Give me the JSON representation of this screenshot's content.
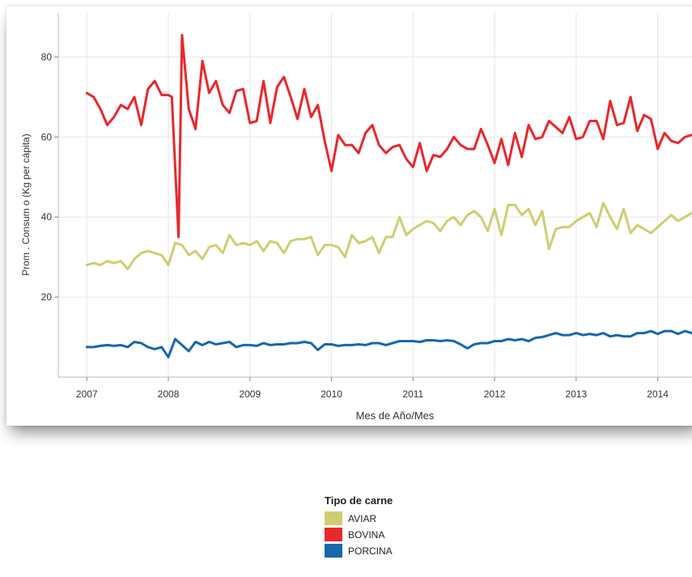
{
  "chart_data": {
    "type": "line",
    "title": "",
    "xlabel": "Mes de Año/Mes",
    "ylabel": "Prom . Consum o (Kg per cápita)",
    "x_tick_labels": [
      "2007",
      "2008",
      "2009",
      "2010",
      "2011",
      "2012",
      "2013",
      "2014"
    ],
    "y_tick_labels": [
      "20",
      "40",
      "60",
      "80"
    ],
    "y_ticks": [
      20,
      40,
      60,
      80
    ],
    "xlim": [
      2006.65,
      2014.47
    ],
    "ylim": [
      0,
      91
    ],
    "grid": true,
    "legend_position": "bottom-center",
    "legend_title": "Tipo de carne",
    "series": [
      {
        "name": "AVIAR",
        "color": "#cfcd72",
        "x": [
          2007.0,
          2007.083,
          2007.167,
          2007.25,
          2007.333,
          2007.417,
          2007.5,
          2007.583,
          2007.667,
          2007.75,
          2007.833,
          2007.917,
          2008.0,
          2008.083,
          2008.167,
          2008.25,
          2008.333,
          2008.417,
          2008.5,
          2008.583,
          2008.667,
          2008.75,
          2008.833,
          2008.917,
          2009.0,
          2009.083,
          2009.167,
          2009.25,
          2009.333,
          2009.417,
          2009.5,
          2009.583,
          2009.667,
          2009.75,
          2009.833,
          2009.917,
          2010.0,
          2010.083,
          2010.167,
          2010.25,
          2010.333,
          2010.417,
          2010.5,
          2010.583,
          2010.667,
          2010.75,
          2010.833,
          2010.917,
          2011.0,
          2011.083,
          2011.167,
          2011.25,
          2011.333,
          2011.417,
          2011.5,
          2011.583,
          2011.667,
          2011.75,
          2011.833,
          2011.917,
          2012.0,
          2012.083,
          2012.167,
          2012.25,
          2012.333,
          2012.417,
          2012.5,
          2012.583,
          2012.667,
          2012.75,
          2012.833,
          2012.917,
          2013.0,
          2013.083,
          2013.167,
          2013.25,
          2013.333,
          2013.417,
          2013.5,
          2013.583,
          2013.667,
          2013.75,
          2013.833,
          2013.917,
          2014.0,
          2014.083,
          2014.167,
          2014.25,
          2014.333,
          2014.417
        ],
        "values": [
          28,
          28.5,
          28,
          29,
          28.5,
          29,
          27,
          29.5,
          31,
          31.5,
          31,
          30.5,
          28,
          33.5,
          33,
          30.5,
          31.5,
          29.5,
          32.5,
          33,
          31,
          35.5,
          33,
          33.5,
          33,
          34,
          31.5,
          34,
          33.5,
          31,
          34,
          34.5,
          34.5,
          35,
          30.5,
          33,
          33,
          32.5,
          30,
          35.5,
          33.5,
          34,
          35,
          31,
          35,
          35,
          40,
          35.5,
          37,
          38,
          39,
          38.5,
          36.5,
          39,
          40,
          38,
          40.5,
          41.5,
          40,
          36.5,
          42,
          35.5,
          43,
          43,
          40.5,
          42,
          38,
          41.5,
          32,
          37,
          37.5,
          37.5,
          39,
          40,
          41,
          37.5,
          43.5,
          40,
          37,
          42,
          36,
          38,
          37,
          36,
          37.5,
          39,
          40.5,
          39,
          40,
          41
        ]
      },
      {
        "name": "BOVINA",
        "color": "#e8282c",
        "x": [
          2007.0,
          2007.083,
          2007.167,
          2007.25,
          2007.333,
          2007.417,
          2007.5,
          2007.583,
          2007.667,
          2007.75,
          2007.833,
          2007.917,
          2008.0,
          2008.042,
          2008.125,
          2008.167,
          2008.25,
          2008.333,
          2008.417,
          2008.5,
          2008.583,
          2008.667,
          2008.75,
          2008.833,
          2008.917,
          2009.0,
          2009.083,
          2009.167,
          2009.25,
          2009.333,
          2009.417,
          2009.5,
          2009.583,
          2009.667,
          2009.75,
          2009.833,
          2009.917,
          2010.0,
          2010.083,
          2010.167,
          2010.25,
          2010.333,
          2010.417,
          2010.5,
          2010.583,
          2010.667,
          2010.75,
          2010.833,
          2010.917,
          2011.0,
          2011.083,
          2011.167,
          2011.25,
          2011.333,
          2011.417,
          2011.5,
          2011.583,
          2011.667,
          2011.75,
          2011.833,
          2011.917,
          2012.0,
          2012.083,
          2012.167,
          2012.25,
          2012.333,
          2012.417,
          2012.5,
          2012.583,
          2012.667,
          2012.75,
          2012.833,
          2012.917,
          2013.0,
          2013.083,
          2013.167,
          2013.25,
          2013.333,
          2013.417,
          2013.5,
          2013.583,
          2013.667,
          2013.75,
          2013.833,
          2013.917,
          2014.0,
          2014.083,
          2014.167,
          2014.25,
          2014.333,
          2014.417
        ],
        "values": [
          71,
          70,
          67,
          63,
          65,
          68,
          67,
          70,
          63,
          72,
          74,
          70.5,
          70.5,
          70,
          35,
          85.5,
          67,
          62,
          79,
          71,
          74,
          68,
          66,
          71.5,
          72,
          63.5,
          64,
          74,
          63.5,
          72.5,
          75,
          70,
          64.5,
          72,
          65,
          68,
          59,
          51.5,
          60.5,
          58,
          58,
          56,
          61,
          63,
          58,
          56,
          57.5,
          58,
          54.5,
          52.5,
          58.5,
          51.5,
          55.5,
          55,
          57,
          60,
          58,
          57,
          57,
          62,
          58,
          53.5,
          59.5,
          53,
          61,
          55,
          63,
          59.5,
          60,
          64,
          62.5,
          61,
          65,
          59.5,
          60,
          64,
          64,
          59.5,
          69,
          63,
          63.5,
          70,
          61.5,
          65.5,
          64.5,
          57,
          61,
          59,
          58.5,
          60,
          60.5
        ]
      },
      {
        "name": "PORCINA",
        "color": "#1767ae",
        "x": [
          2007.0,
          2007.083,
          2007.167,
          2007.25,
          2007.333,
          2007.417,
          2007.5,
          2007.583,
          2007.667,
          2007.75,
          2007.833,
          2007.917,
          2008.0,
          2008.083,
          2008.167,
          2008.25,
          2008.333,
          2008.417,
          2008.5,
          2008.583,
          2008.667,
          2008.75,
          2008.833,
          2008.917,
          2009.0,
          2009.083,
          2009.167,
          2009.25,
          2009.333,
          2009.417,
          2009.5,
          2009.583,
          2009.667,
          2009.75,
          2009.833,
          2009.917,
          2010.0,
          2010.083,
          2010.167,
          2010.25,
          2010.333,
          2010.417,
          2010.5,
          2010.583,
          2010.667,
          2010.75,
          2010.833,
          2010.917,
          2011.0,
          2011.083,
          2011.167,
          2011.25,
          2011.333,
          2011.417,
          2011.5,
          2011.583,
          2011.667,
          2011.75,
          2011.833,
          2011.917,
          2012.0,
          2012.083,
          2012.167,
          2012.25,
          2012.333,
          2012.417,
          2012.5,
          2012.583,
          2012.667,
          2012.75,
          2012.833,
          2012.917,
          2013.0,
          2013.083,
          2013.167,
          2013.25,
          2013.333,
          2013.417,
          2013.5,
          2013.583,
          2013.667,
          2013.75,
          2013.833,
          2013.917,
          2014.0,
          2014.083,
          2014.167,
          2014.25,
          2014.333,
          2014.417
        ],
        "values": [
          7.5,
          7.5,
          7.8,
          8,
          7.8,
          8,
          7.5,
          8.8,
          8.5,
          7.5,
          7,
          7.5,
          5,
          9.5,
          8,
          6.5,
          8.8,
          8,
          8.8,
          8.2,
          8.5,
          8.8,
          7.5,
          8,
          8,
          7.8,
          8.5,
          8,
          8.2,
          8.2,
          8.5,
          8.5,
          8.8,
          8.5,
          6.8,
          8.2,
          8.2,
          7.8,
          8,
          8,
          8.2,
          8,
          8.5,
          8.5,
          8,
          8.5,
          9,
          9,
          9,
          8.8,
          9.2,
          9.2,
          9,
          9.2,
          9,
          8.2,
          7.2,
          8.2,
          8.5,
          8.5,
          9,
          9,
          9.5,
          9.2,
          9.5,
          9,
          9.8,
          10,
          10.5,
          11,
          10.5,
          10.5,
          11,
          10.5,
          10.8,
          10.5,
          11,
          10.2,
          10.5,
          10.2,
          10.2,
          11,
          11,
          11.5,
          10.8,
          11.5,
          11.5,
          10.8,
          11.5,
          11
        ]
      }
    ]
  }
}
